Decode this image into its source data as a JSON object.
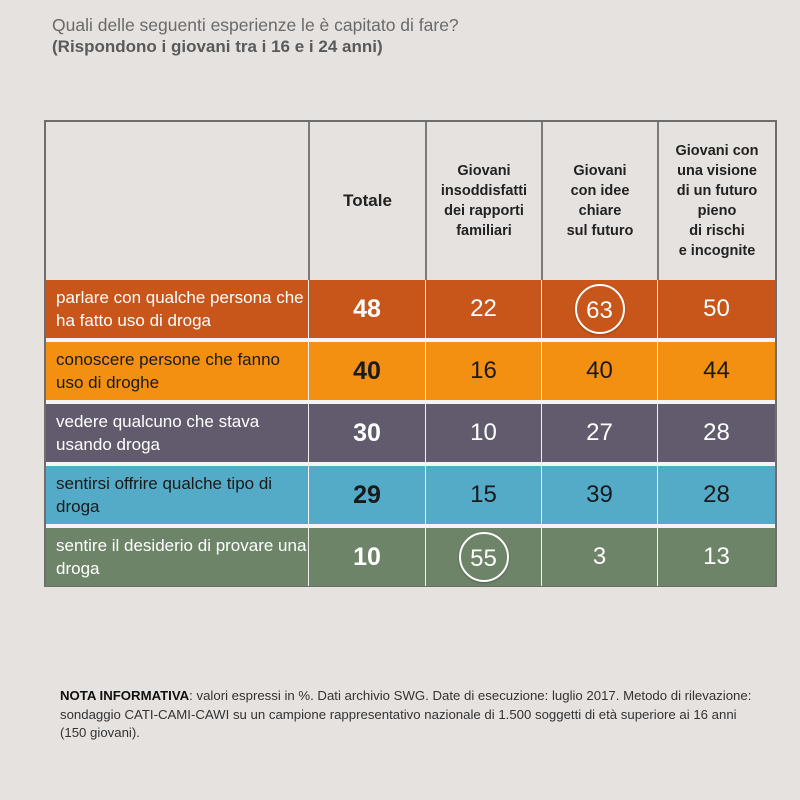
{
  "header": {
    "question": "Quali delle seguenti esperienze le è capitato di fare?",
    "subtitle": "(Rispondono i giovani tra i 16 e i 24 anni)"
  },
  "chart_data": {
    "type": "table",
    "title": "Quali delle seguenti esperienze le è capitato di fare?",
    "subtitle": "(Rispondono i giovani tra i 16 e i 24 anni)",
    "unit": "%",
    "columns": [
      "",
      "Totale",
      "Giovani\ninsoddisfatti\ndei rapporti\nfamiliari",
      "Giovani\ncon idee\nchiare\nsul futuro",
      "Giovani con\nuna visione\ndi un futuro\npieno\ndi rischi\ne incognite"
    ],
    "rows": [
      {
        "label": "parlare con qualche persona che ha fatto uso di droga",
        "values": [
          48,
          22,
          63,
          50
        ],
        "color": "#c8561a",
        "text_color": "#ffffff",
        "circled": [
          2
        ]
      },
      {
        "label": "conoscere persone che fanno uso di droghe",
        "values": [
          40,
          16,
          40,
          44
        ],
        "color": "#f39012",
        "text_color": "#1a1a1a",
        "circled": []
      },
      {
        "label": "vedere qualcuno che stava usando droga",
        "values": [
          30,
          10,
          27,
          28
        ],
        "color": "#625a6d",
        "text_color": "#ffffff",
        "circled": []
      },
      {
        "label": "sentirsi offrire qualche tipo di droga",
        "values": [
          29,
          15,
          39,
          28
        ],
        "color": "#54abc8",
        "text_color": "#1a1a1a",
        "circled": []
      },
      {
        "label": "sentire il desiderio di provare una droga",
        "values": [
          10,
          55,
          3,
          13
        ],
        "color": "#6d8468",
        "text_color": "#ffffff",
        "circled": [
          1
        ]
      }
    ]
  },
  "note": {
    "label": "NOTA INFORMATIVA",
    "text": ": valori espressi in %. Dati archivio SWG. Date di esecuzione: luglio 2017. Metodo di rilevazione: sondaggio CATI-CAMI-CAWI su un campione rappresentativo nazionale di 1.500 soggetti di età superiore ai 16 anni (150 giovani)."
  }
}
